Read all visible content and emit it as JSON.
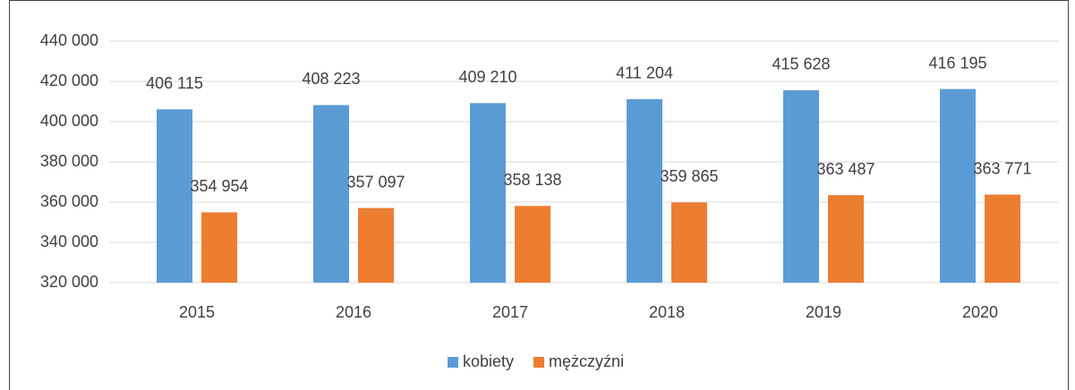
{
  "chart_data": {
    "type": "bar",
    "categories": [
      "2015",
      "2016",
      "2017",
      "2018",
      "2019",
      "2020"
    ],
    "series": [
      {
        "name": "kobiety",
        "color": "#5b9bd5",
        "values": [
          406115,
          408223,
          409210,
          411204,
          415628,
          416195
        ],
        "value_labels": [
          "406 115",
          "408 223",
          "409 210",
          "411 204",
          "415 628",
          "416 195"
        ]
      },
      {
        "name": "mężczyźni",
        "color": "#ed7d31",
        "values": [
          354954,
          357097,
          358138,
          359865,
          363487,
          363771
        ],
        "value_labels": [
          "354 954",
          "357 097",
          "358 138",
          "359 865",
          "363 487",
          "363 771"
        ]
      }
    ],
    "ylim": [
      320000,
      440000
    ],
    "yticks": [
      {
        "value": 320000,
        "label": "320 000"
      },
      {
        "value": 340000,
        "label": "340 000"
      },
      {
        "value": 360000,
        "label": "360 000"
      },
      {
        "value": 380000,
        "label": "380 000"
      },
      {
        "value": 400000,
        "label": "400 000"
      },
      {
        "value": 420000,
        "label": "420 000"
      },
      {
        "value": 440000,
        "label": "440 000"
      }
    ],
    "grid": true,
    "legend": "bottom"
  }
}
